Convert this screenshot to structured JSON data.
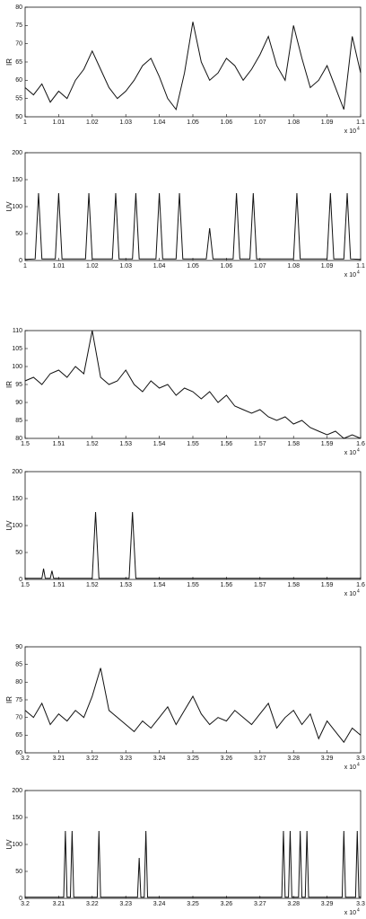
{
  "chart_data": [
    {
      "type": "line",
      "ylabel": "IR",
      "x_multiplier": "x 10",
      "x_exponent": "4",
      "color": "#111111",
      "x": [
        1,
        1.0025,
        1.005,
        1.0075,
        1.01,
        1.0125,
        1.015,
        1.0175,
        1.02,
        1.0225,
        1.025,
        1.0275,
        1.03,
        1.0325,
        1.035,
        1.0375,
        1.04,
        1.0425,
        1.045,
        1.0475,
        1.05,
        1.0525,
        1.055,
        1.0575,
        1.06,
        1.0625,
        1.065,
        1.0675,
        1.07,
        1.0725,
        1.075,
        1.0775,
        1.08,
        1.0825,
        1.085,
        1.0875,
        1.09,
        1.0925,
        1.095,
        1.0975,
        1.1
      ],
      "values": [
        58,
        56,
        59,
        54,
        57,
        55,
        60,
        63,
        68,
        63,
        58,
        55,
        57,
        60,
        64,
        66,
        61,
        55,
        52,
        62,
        76,
        65,
        60,
        62,
        66,
        64,
        60,
        63,
        67,
        72,
        64,
        60,
        75,
        66,
        58,
        60,
        64,
        58,
        52,
        72,
        62
      ],
      "xlim": [
        1,
        1.1
      ],
      "xticks": [
        1,
        1.01,
        1.02,
        1.03,
        1.04,
        1.05,
        1.06,
        1.07,
        1.08,
        1.09,
        1.1
      ],
      "ylim": [
        50,
        80
      ],
      "yticks": [
        50,
        55,
        60,
        65,
        70,
        75,
        80
      ]
    },
    {
      "type": "line",
      "ylabel": "UV",
      "x_multiplier": "x 10",
      "x_exponent": "4",
      "color": "#111111",
      "x": [
        1,
        1.003,
        1.004,
        1.005,
        1.009,
        1.01,
        1.011,
        1.018,
        1.019,
        1.02,
        1.026,
        1.027,
        1.028,
        1.032,
        1.033,
        1.034,
        1.039,
        1.04,
        1.041,
        1.045,
        1.046,
        1.047,
        1.054,
        1.055,
        1.056,
        1.062,
        1.063,
        1.064,
        1.067,
        1.068,
        1.069,
        1.08,
        1.081,
        1.082,
        1.09,
        1.091,
        1.092,
        1.095,
        1.096,
        1.097,
        1.1
      ],
      "values": [
        2,
        3,
        125,
        3,
        3,
        125,
        3,
        3,
        125,
        3,
        3,
        125,
        3,
        3,
        125,
        3,
        3,
        125,
        3,
        3,
        125,
        3,
        3,
        60,
        3,
        3,
        125,
        3,
        3,
        125,
        3,
        3,
        125,
        3,
        3,
        125,
        3,
        3,
        125,
        3,
        2
      ],
      "xlim": [
        1,
        1.1
      ],
      "xticks": [
        1,
        1.01,
        1.02,
        1.03,
        1.04,
        1.05,
        1.06,
        1.07,
        1.08,
        1.09,
        1.1
      ],
      "ylim": [
        0,
        200
      ],
      "yticks": [
        0,
        50,
        100,
        150,
        200
      ]
    },
    {
      "type": "line",
      "ylabel": "IR",
      "x_multiplier": "x 10",
      "x_exponent": "4",
      "color": "#111111",
      "x": [
        1.5,
        1.5025,
        1.505,
        1.5075,
        1.51,
        1.5125,
        1.515,
        1.5175,
        1.52,
        1.5225,
        1.525,
        1.5275,
        1.53,
        1.5325,
        1.535,
        1.5375,
        1.54,
        1.5425,
        1.545,
        1.5475,
        1.55,
        1.5525,
        1.555,
        1.5575,
        1.56,
        1.5625,
        1.565,
        1.5675,
        1.57,
        1.5725,
        1.575,
        1.5775,
        1.58,
        1.5825,
        1.585,
        1.5875,
        1.59,
        1.5925,
        1.595,
        1.5975,
        1.6
      ],
      "values": [
        96,
        97,
        95,
        98,
        99,
        97,
        100,
        98,
        110,
        97,
        95,
        96,
        99,
        95,
        93,
        96,
        94,
        95,
        92,
        94,
        93,
        91,
        93,
        90,
        92,
        89,
        88,
        87,
        88,
        86,
        85,
        86,
        84,
        85,
        83,
        82,
        81,
        82,
        80,
        81,
        80
      ],
      "xlim": [
        1.5,
        1.6
      ],
      "xticks": [
        1.5,
        1.51,
        1.52,
        1.53,
        1.54,
        1.55,
        1.56,
        1.57,
        1.58,
        1.59,
        1.6
      ],
      "ylim": [
        80,
        110
      ],
      "yticks": [
        80,
        85,
        90,
        95,
        100,
        105,
        110
      ]
    },
    {
      "type": "line",
      "ylabel": "UV",
      "x_multiplier": "x 10",
      "x_exponent": "4",
      "color": "#111111",
      "x": [
        1.5,
        1.505,
        1.5055,
        1.506,
        1.5075,
        1.508,
        1.5085,
        1.52,
        1.521,
        1.522,
        1.531,
        1.532,
        1.533,
        1.6
      ],
      "values": [
        2,
        2,
        20,
        2,
        2,
        16,
        2,
        2,
        125,
        2,
        2,
        125,
        2,
        2
      ],
      "xlim": [
        1.5,
        1.6
      ],
      "xticks": [
        1.5,
        1.51,
        1.52,
        1.53,
        1.54,
        1.55,
        1.56,
        1.57,
        1.58,
        1.59,
        1.6
      ],
      "ylim": [
        0,
        200
      ],
      "yticks": [
        0,
        50,
        100,
        150,
        200
      ]
    },
    {
      "type": "line",
      "ylabel": "IR",
      "x_multiplier": "x 10",
      "x_exponent": "4",
      "color": "#111111",
      "x": [
        3.2,
        3.2025,
        3.205,
        3.2075,
        3.21,
        3.2125,
        3.215,
        3.2175,
        3.22,
        3.2225,
        3.225,
        3.2275,
        3.23,
        3.2325,
        3.235,
        3.2375,
        3.24,
        3.2425,
        3.245,
        3.2475,
        3.25,
        3.2525,
        3.255,
        3.2575,
        3.26,
        3.2625,
        3.265,
        3.2675,
        3.27,
        3.2725,
        3.275,
        3.2775,
        3.28,
        3.2825,
        3.285,
        3.2875,
        3.29,
        3.2925,
        3.295,
        3.2975,
        3.3
      ],
      "values": [
        72,
        70,
        74,
        68,
        71,
        69,
        72,
        70,
        76,
        84,
        72,
        70,
        68,
        66,
        69,
        67,
        70,
        73,
        68,
        72,
        76,
        71,
        68,
        70,
        69,
        72,
        70,
        68,
        71,
        74,
        67,
        70,
        72,
        68,
        71,
        64,
        69,
        66,
        63,
        67,
        65
      ],
      "xlim": [
        3.2,
        3.3
      ],
      "xticks": [
        3.2,
        3.21,
        3.22,
        3.23,
        3.24,
        3.25,
        3.26,
        3.27,
        3.28,
        3.29,
        3.3
      ],
      "ylim": [
        60,
        90
      ],
      "yticks": [
        60,
        65,
        70,
        75,
        80,
        85,
        90
      ]
    },
    {
      "type": "line",
      "ylabel": "UV",
      "x_multiplier": "x 10",
      "x_exponent": "4",
      "color": "#111111",
      "x": [
        3.2,
        3.2115,
        3.212,
        3.2125,
        3.2135,
        3.214,
        3.2145,
        3.2215,
        3.222,
        3.2225,
        3.2335,
        3.234,
        3.2345,
        3.2355,
        3.236,
        3.2365,
        3.2765,
        3.277,
        3.2775,
        3.2785,
        3.279,
        3.2795,
        3.2815,
        3.282,
        3.2825,
        3.2835,
        3.284,
        3.2845,
        3.2945,
        3.295,
        3.2955,
        3.2985,
        3.299,
        3.2995,
        3.3
      ],
      "values": [
        2,
        2,
        125,
        2,
        2,
        125,
        2,
        2,
        125,
        2,
        2,
        75,
        2,
        2,
        125,
        2,
        2,
        125,
        2,
        2,
        125,
        2,
        2,
        125,
        2,
        2,
        125,
        2,
        2,
        125,
        2,
        2,
        125,
        2,
        2
      ],
      "xlim": [
        3.2,
        3.3
      ],
      "xticks": [
        3.2,
        3.21,
        3.22,
        3.23,
        3.24,
        3.25,
        3.26,
        3.27,
        3.28,
        3.29,
        3.3
      ],
      "ylim": [
        0,
        200
      ],
      "yticks": [
        0,
        50,
        100,
        150,
        200
      ]
    }
  ]
}
